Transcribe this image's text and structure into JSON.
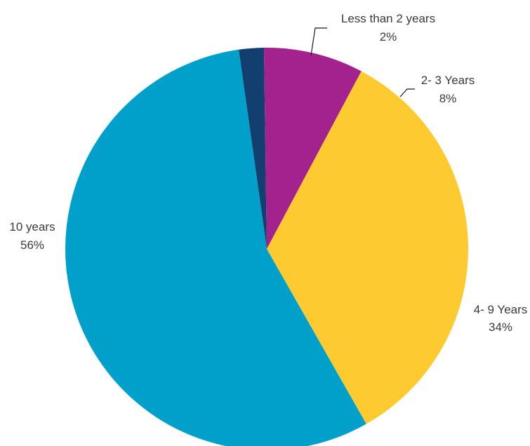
{
  "chart_data": {
    "type": "pie",
    "slices": [
      {
        "label": "Less than 2 years",
        "value": 2,
        "value_text": "2%",
        "color": "#123f6e"
      },
      {
        "label": "2- 3 Years",
        "value": 8,
        "value_text": "8%",
        "color": "#a3228e"
      },
      {
        "label": "4- 9 Years",
        "value": 34,
        "value_text": "34%",
        "color": "#fdca2f"
      },
      {
        "label": "10 years",
        "value": 56,
        "value_text": "56%",
        "color": "#00a0cb"
      }
    ],
    "legend": "none"
  }
}
